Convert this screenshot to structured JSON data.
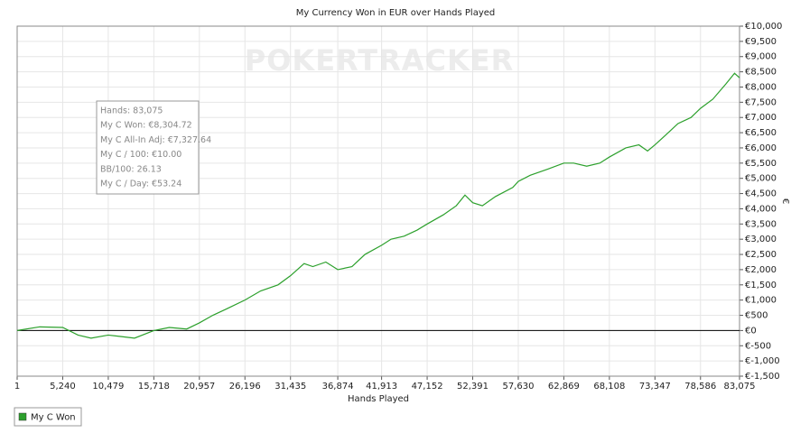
{
  "chart_data": {
    "type": "line",
    "title": "My Currency Won in EUR over Hands Played",
    "watermark": "POKERTRACKER",
    "x_label": "Hands Played",
    "y_label": "€",
    "x": [
      1,
      2600,
      5240,
      7000,
      8500,
      10479,
      12000,
      13500,
      15718,
      17500,
      19500,
      20957,
      22500,
      24000,
      26196,
      28000,
      30000,
      31435,
      33000,
      34000,
      35500,
      36874,
      38500,
      40000,
      41913,
      43000,
      44500,
      46000,
      47152,
      49000,
      50500,
      51500,
      52391,
      53500,
      55000,
      57000,
      57630,
      59000,
      61000,
      62869,
      64000,
      65500,
      67000,
      68108,
      70000,
      71500,
      72500,
      73347,
      74500,
      76000,
      77500,
      78586,
      80000,
      81500,
      82500,
      83075
    ],
    "series": [
      {
        "name": "My C Won",
        "color": "#2ca02c",
        "values": [
          0,
          120,
          100,
          -150,
          -250,
          -150,
          -200,
          -250,
          0,
          100,
          50,
          250,
          500,
          700,
          1000,
          1300,
          1500,
          1800,
          2200,
          2100,
          2250,
          2000,
          2100,
          2500,
          2800,
          3000,
          3100,
          3300,
          3500,
          3800,
          4100,
          4450,
          4200,
          4100,
          4400,
          4700,
          4900,
          5100,
          5300,
          5500,
          5500,
          5400,
          5500,
          5700,
          6000,
          6100,
          5900,
          6100,
          6400,
          6800,
          7000,
          7300,
          7600,
          8100,
          8450,
          8304.72
        ]
      }
    ],
    "xlim": [
      1,
      83075
    ],
    "xticks": [
      1,
      {
        "value": 5240,
        "label": "5,240"
      },
      {
        "value": 10479,
        "label": "10,479"
      },
      {
        "value": 15718,
        "label": "15,718"
      },
      {
        "value": 20957,
        "label": "20,957"
      },
      {
        "value": 26196,
        "label": "26,196"
      },
      {
        "value": 31435,
        "label": "31,435"
      },
      {
        "value": 36874,
        "label": "36,874"
      },
      {
        "value": 41913,
        "label": "41,913"
      },
      {
        "value": 47152,
        "label": "47,152"
      },
      {
        "value": 52391,
        "label": "52,391"
      },
      {
        "value": 57630,
        "label": "57,630"
      },
      {
        "value": 62869,
        "label": "62,869"
      },
      {
        "value": 68108,
        "label": "68,108"
      },
      {
        "value": 73347,
        "label": "73,347"
      },
      {
        "value": 78586,
        "label": "78,586"
      },
      {
        "value": 83075,
        "label": "83,075"
      }
    ],
    "ylim": [
      -1500,
      10000
    ],
    "yticks": [
      {
        "value": -1500,
        "label": "€-1,500"
      },
      {
        "value": -1000,
        "label": "€-1,000"
      },
      {
        "value": -500,
        "label": "€-500"
      },
      {
        "value": 0,
        "label": "€0"
      },
      {
        "value": 500,
        "label": "€500"
      },
      {
        "value": 1000,
        "label": "€1,000"
      },
      {
        "value": 1500,
        "label": "€1,500"
      },
      {
        "value": 2000,
        "label": "€2,000"
      },
      {
        "value": 2500,
        "label": "€2,500"
      },
      {
        "value": 3000,
        "label": "€3,000"
      },
      {
        "value": 3500,
        "label": "€3,500"
      },
      {
        "value": 4000,
        "label": "€4,000"
      },
      {
        "value": 4500,
        "label": "€4,500"
      },
      {
        "value": 5000,
        "label": "€5,000"
      },
      {
        "value": 5500,
        "label": "€5,500"
      },
      {
        "value": 6000,
        "label": "€6,000"
      },
      {
        "value": 6500,
        "label": "€6,500"
      },
      {
        "value": 7000,
        "label": "€7,000"
      },
      {
        "value": 7500,
        "label": "€7,500"
      },
      {
        "value": 8000,
        "label": "€8,000"
      },
      {
        "value": 8500,
        "label": "€8,500"
      },
      {
        "value": 9000,
        "label": "€9,000"
      },
      {
        "value": 9500,
        "label": "€9,500"
      },
      {
        "value": 10000,
        "label": "€10,000"
      }
    ],
    "grid": true,
    "legend": "bottom-left",
    "tooltip": [
      "Hands: 83,075",
      "My C Won: €8,304.72",
      "My C All-In Adj: €7,327.64",
      "My C / 100: €10.00",
      "BB/100: 26.13",
      "My C / Day: €53.24"
    ]
  }
}
